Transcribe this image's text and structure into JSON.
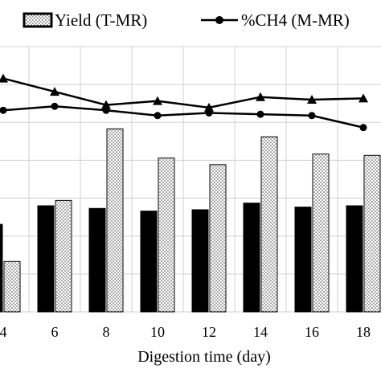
{
  "chart_data": {
    "type": "bar",
    "xlabel": "Digestion time (day)",
    "categories": [
      "4",
      "6",
      "8",
      "10",
      "12",
      "14",
      "16",
      "18"
    ],
    "ylim": [
      0,
      10
    ],
    "grid": true,
    "legend_placement": "top",
    "series": [
      {
        "name": "",
        "kind": "bar",
        "color": "#000000",
        "values": [
          3.3,
          4.0,
          3.9,
          3.8,
          3.85,
          4.1,
          3.95,
          4.0
        ]
      },
      {
        "name": "Yield (T-MR)",
        "kind": "bar",
        "pattern": "dotted",
        "color": "#ffffff",
        "values": [
          1.9,
          4.2,
          6.9,
          5.8,
          5.55,
          6.6,
          5.95,
          5.9
        ]
      },
      {
        "name": "",
        "kind": "line",
        "marker": "triangle",
        "color": "#000000",
        "values": [
          8.8,
          8.3,
          7.8,
          7.95,
          7.7,
          8.1,
          8.0,
          8.05
        ]
      },
      {
        "name": "%CH4 (M-MR)",
        "kind": "line",
        "marker": "circle",
        "color": "#000000",
        "values": [
          7.6,
          7.75,
          7.6,
          7.4,
          7.5,
          7.45,
          7.4,
          6.95
        ]
      }
    ],
    "legend": [
      {
        "label": "Yield (T-MR)",
        "swatch": "dotted-bar"
      },
      {
        "label": "%CH4 (M-MR)",
        "swatch": "line-circle"
      }
    ]
  }
}
